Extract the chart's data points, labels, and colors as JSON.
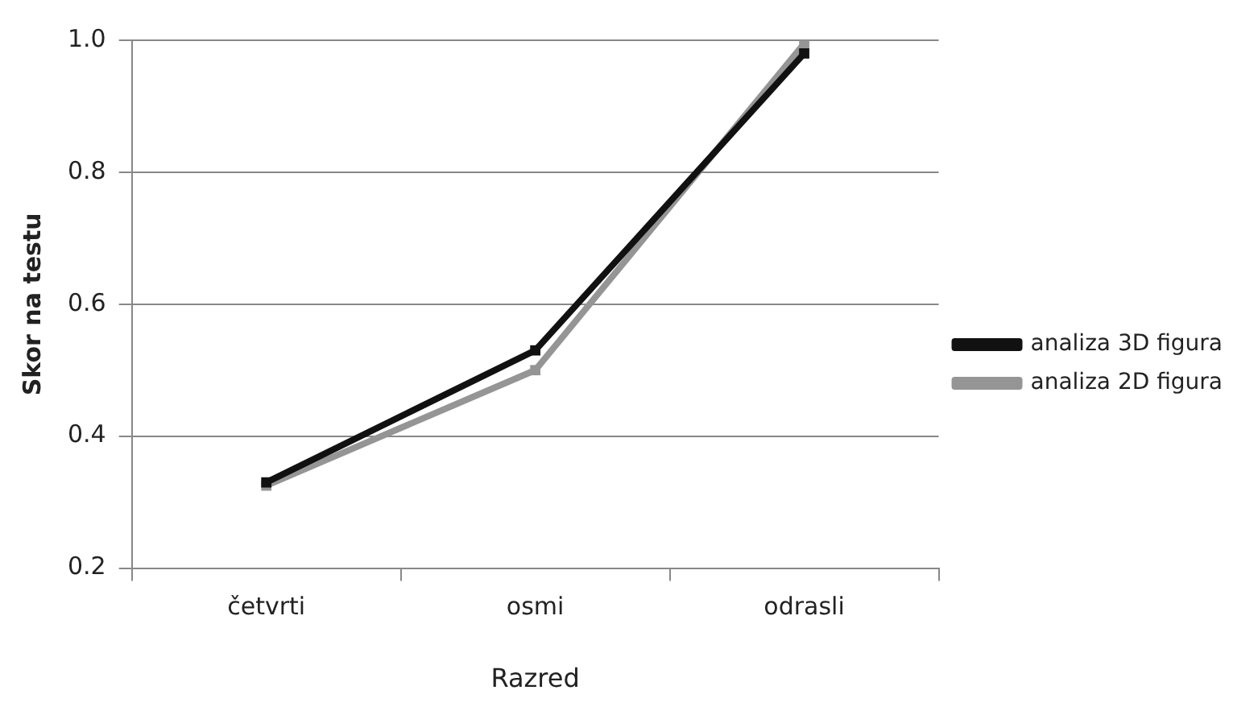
{
  "chart_data": {
    "type": "line",
    "xlabel": "Razred",
    "ylabel": "Skor na testu",
    "categories": [
      "četvrti",
      "osmi",
      "odrasli"
    ],
    "series": [
      {
        "name": "analiza 3D figura",
        "color": "#111111",
        "values": [
          0.33,
          0.53,
          0.98
        ]
      },
      {
        "name": "analiza 2D figura",
        "color": "#959595",
        "values": [
          0.325,
          0.5,
          0.995
        ]
      }
    ],
    "ylim": [
      0.2,
      1.0
    ],
    "yticks": [
      {
        "value": 0.2,
        "label": "0.2"
      },
      {
        "value": 0.4,
        "label": "0.4"
      },
      {
        "value": 0.6,
        "label": "0.6"
      },
      {
        "value": 0.8,
        "label": "0.8"
      },
      {
        "value": 1.0,
        "label": "1.0"
      }
    ],
    "grid": "y",
    "legend": "right",
    "marker": "square",
    "line_style": "solid"
  }
}
